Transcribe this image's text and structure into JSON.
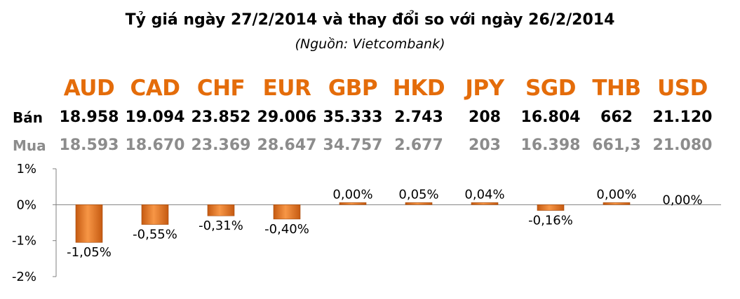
{
  "header": {
    "title": "Tỷ giá ngày 27/2/2014 và thay đổi so với ngày 26/2/2014",
    "subtitle": "(Nguồn: Vietcombank)"
  },
  "rows": {
    "sell_label": "Bán",
    "buy_label": "Mua"
  },
  "colors": {
    "accent": "#e46c0a",
    "bar_light": "#f79646",
    "bar_dark": "#c55a11",
    "buy_text": "#8c8c8c",
    "axis": "#808080"
  },
  "chart_data": {
    "type": "bar",
    "title": "Tỷ giá ngày 27/2/2014 và thay đổi so với ngày 26/2/2014",
    "subtitle": "(Nguồn: Vietcombank)",
    "categories": [
      "AUD",
      "CAD",
      "CHF",
      "EUR",
      "GBP",
      "HKD",
      "JPY",
      "SGD",
      "THB",
      "USD"
    ],
    "sell": [
      "18.958",
      "19.094",
      "23.852",
      "29.006",
      "35.333",
      "2.743",
      "208",
      "16.804",
      "662",
      "21.120"
    ],
    "buy": [
      "18.593",
      "18.670",
      "23.369",
      "28.647",
      "34.757",
      "2.677",
      "203",
      "16.398",
      "661,3",
      "21.080"
    ],
    "values": [
      -1.05,
      -0.55,
      -0.31,
      -0.4,
      0.0,
      0.05,
      0.04,
      -0.16,
      0.0,
      0.0
    ],
    "value_labels": [
      "-1,05%",
      "-0,55%",
      "-0,31%",
      "-0,40%",
      "0,00%",
      "0,05%",
      "0,04%",
      "-0,16%",
      "0,00%",
      "0,00%"
    ],
    "show_bar": [
      true,
      true,
      true,
      true,
      true,
      true,
      true,
      true,
      true,
      false
    ],
    "ylim": [
      -2,
      1
    ],
    "yticks": [
      1,
      0,
      -1,
      -2
    ],
    "ytick_labels": [
      "1%",
      "0%",
      "-1%",
      "-2%"
    ],
    "grid": false,
    "legend": "none"
  }
}
